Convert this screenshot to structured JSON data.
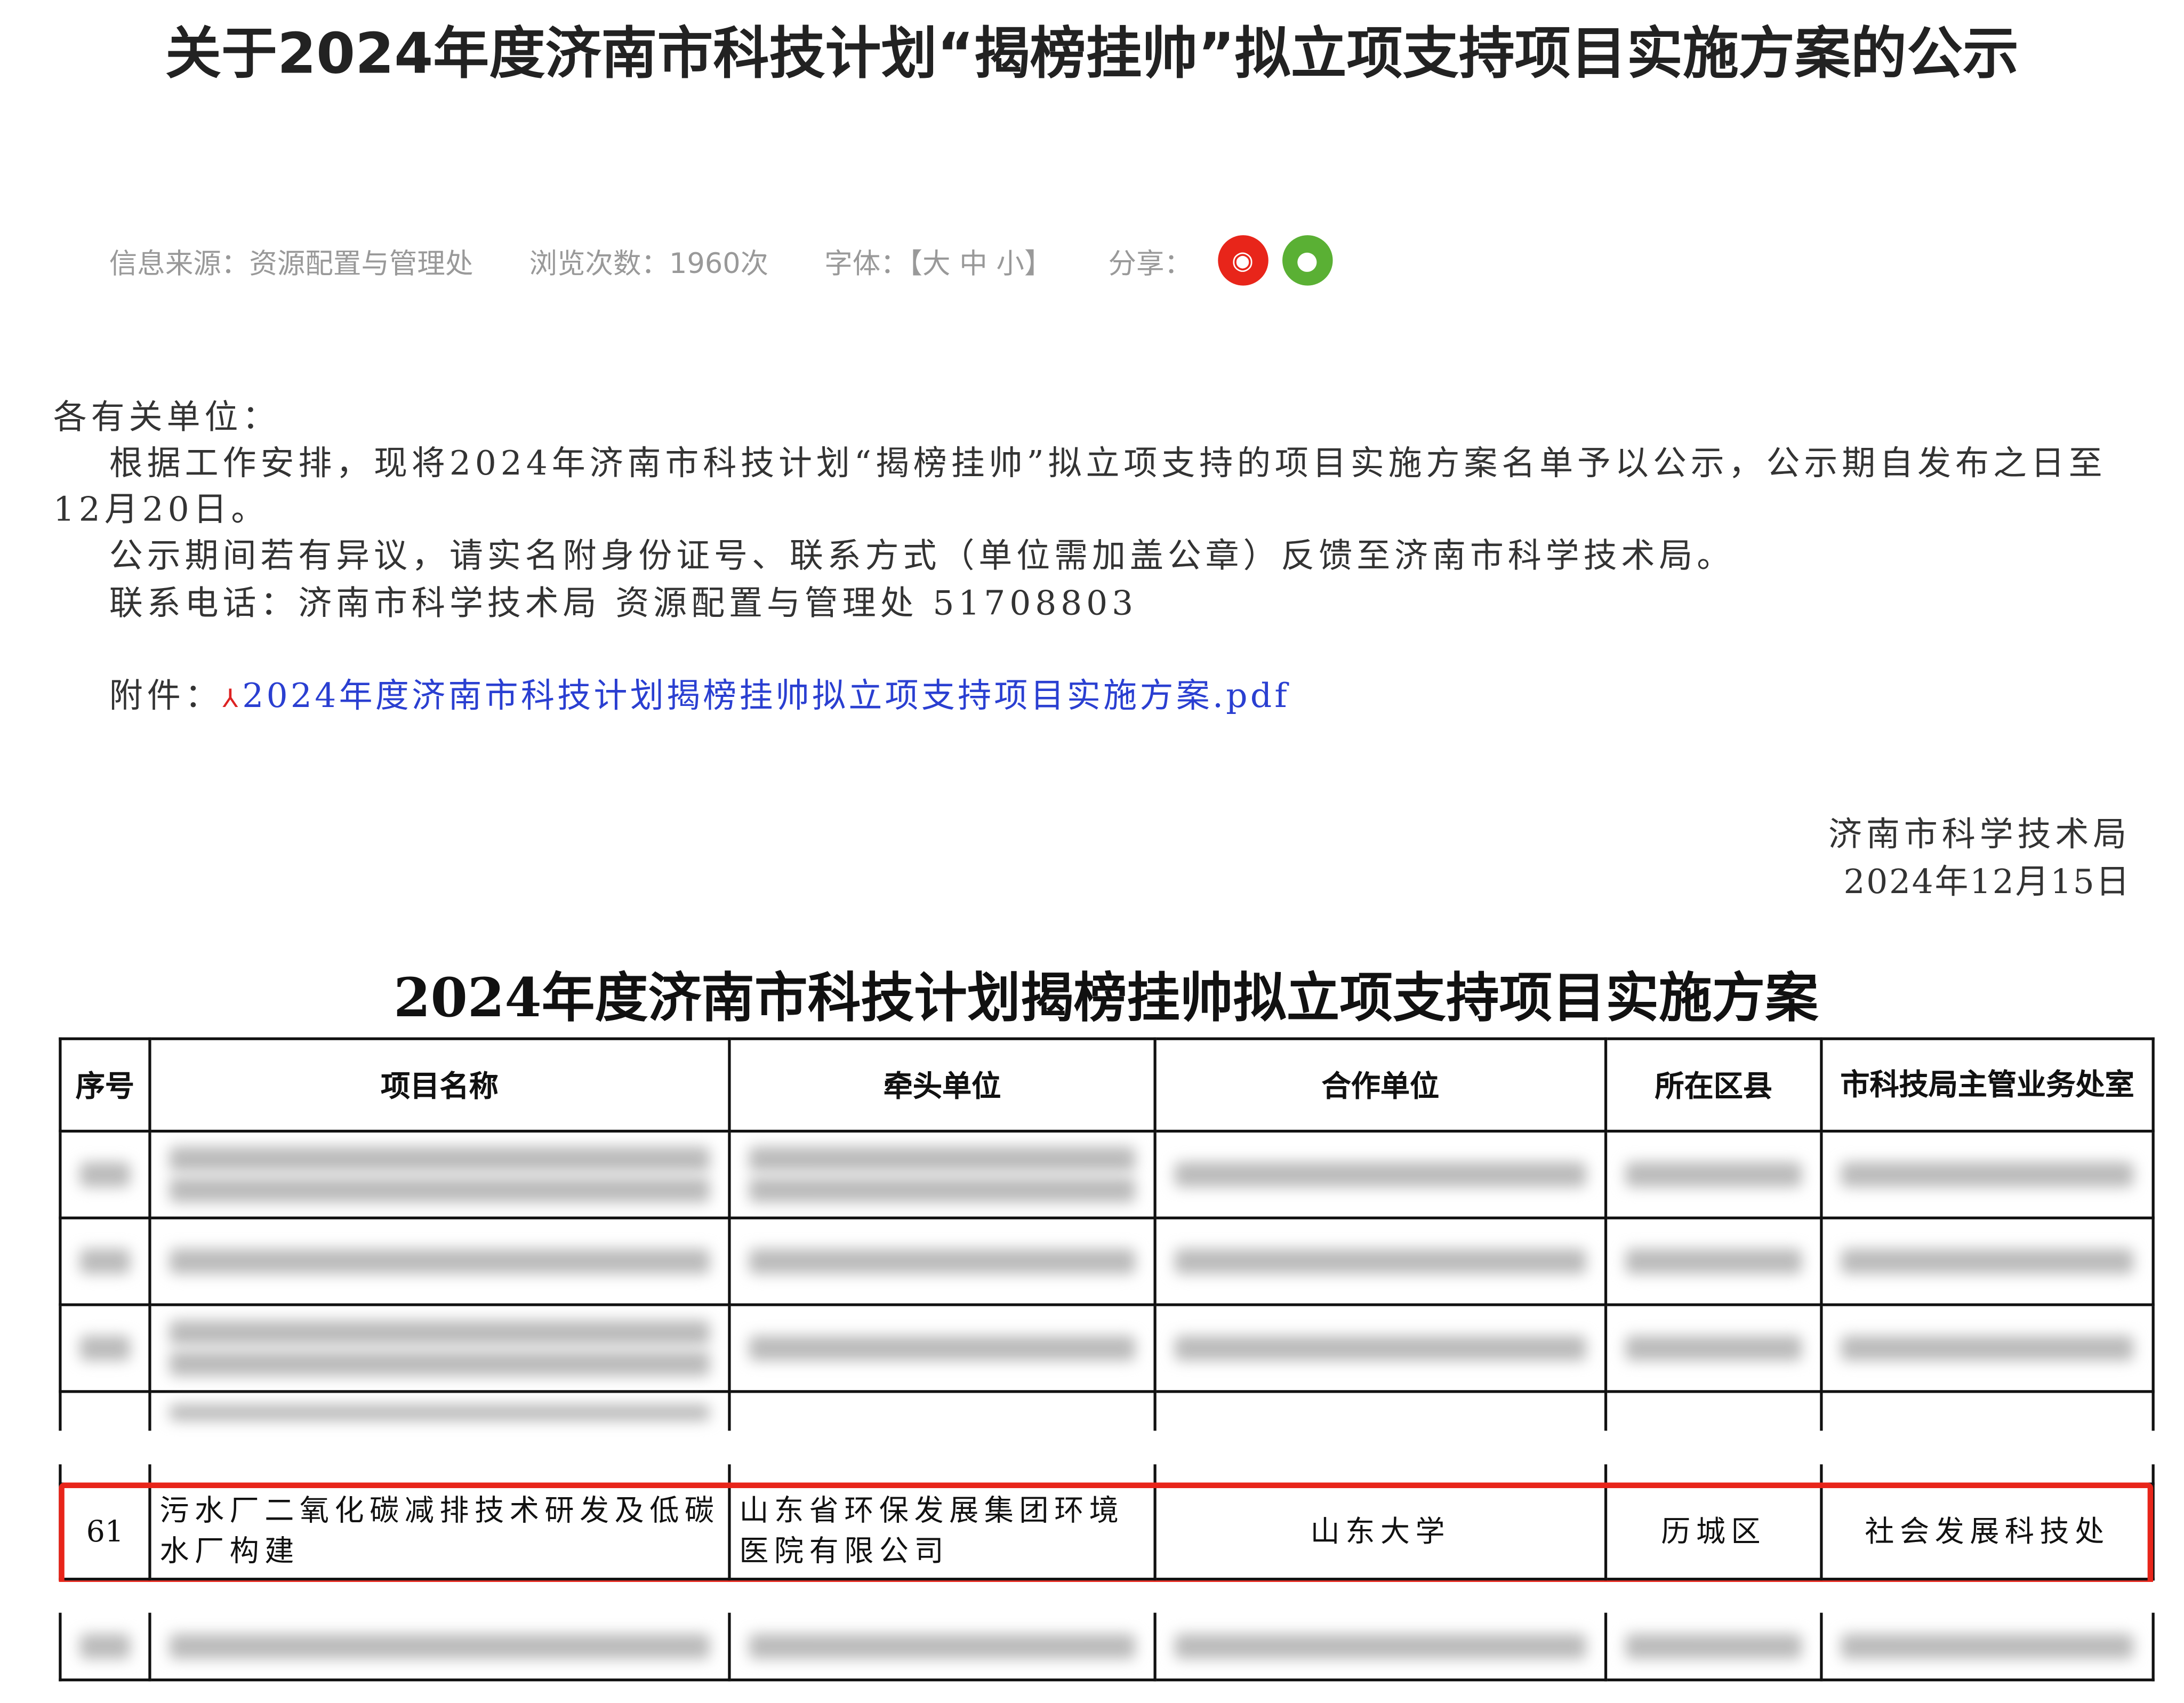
{
  "article": {
    "title": "关于2024年度济南市科技计划“揭榜挂帅”拟立项支持项目实施方案的公示",
    "meta": {
      "source": "信息来源：资源配置与管理处",
      "views": "浏览次数：1960次",
      "font_label": "字体：【大 中 小】",
      "share_label": "分享：",
      "share_icons": [
        "weibo-icon",
        "wechat-icon"
      ]
    },
    "salutation": "各有关单位：",
    "paragraphs": [
      "根据工作安排，现将2024年济南市科技计划“揭榜挂帅”拟立项支持的项目实施方案名单予以公示，公示期自发布之日至12月20日。",
      "公示期间若有异议，请实名附身份证号、联系方式（单位需加盖公章）反馈至济南市科学技术局。",
      "联系电话：济南市科学技术局 资源配置与管理处 51708803"
    ],
    "attachment_label": "附件：",
    "attachment_link": "2024年度济南市科技计划揭榜挂帅拟立项支持项目实施方案.pdf",
    "signature": "济南市科学技术局",
    "date": "2024年12月15日"
  },
  "table": {
    "title": "2024年度济南市科技计划揭榜挂帅拟立项支持项目实施方案",
    "headers": [
      "序号",
      "项目名称",
      "牵头单位",
      "合作单位",
      "所在区县",
      "市科技局主管业务处室"
    ],
    "highlighted_row": [
      "61",
      "污水厂二氧化碳减排技术研发及低碳水厂构建",
      "山东省环保发展集团环境医院有限公司",
      "山东大学",
      "历城区",
      "社会发展科技处"
    ],
    "highlight_color": "#e8251a"
  }
}
